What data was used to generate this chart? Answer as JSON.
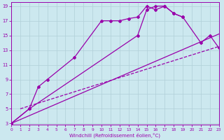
{
  "xlabel": "Windchill (Refroidissement éolien,°C)",
  "background_color": "#cce8ef",
  "grid_color": "#b0cfd8",
  "line_color": "#9900aa",
  "xmin": 0,
  "xmax": 23,
  "ymin": 3,
  "ymax": 19,
  "yticks": [
    3,
    5,
    7,
    9,
    11,
    13,
    15,
    17,
    19
  ],
  "xticks": [
    0,
    1,
    2,
    3,
    4,
    5,
    6,
    7,
    8,
    9,
    10,
    11,
    12,
    13,
    14,
    15,
    16,
    17,
    18,
    19,
    20,
    21,
    22,
    23
  ],
  "series": [
    {
      "x": [
        0,
        1,
        2,
        3,
        4,
        5,
        6,
        7,
        8,
        9,
        10,
        11,
        12,
        13,
        14,
        15,
        16,
        17,
        18,
        19,
        20,
        21,
        22,
        23
      ],
      "y": [
        3,
        null,
        5,
        8,
        9,
        null,
        null,
        12,
        null,
        null,
        17,
        17,
        17,
        17.3,
        17.5,
        19,
        18.5,
        19,
        18,
        17.5,
        null,
        null,
        null,
        null
      ],
      "marker": "D",
      "markersize": 2,
      "linewidth": 0.9,
      "linestyle": "-"
    },
    {
      "x": [
        0,
        2,
        3,
        4,
        7,
        10,
        11,
        12,
        13,
        14,
        15,
        16,
        17,
        18,
        19,
        20,
        21,
        22,
        23
      ],
      "y": [
        3,
        5,
        null,
        null,
        null,
        null,
        null,
        null,
        null,
        15,
        18.5,
        19,
        19,
        18,
        17.5,
        null,
        14,
        15,
        13.3
      ],
      "marker": "D",
      "markersize": 2,
      "linewidth": 0.9,
      "linestyle": "-"
    },
    {
      "x": [
        0,
        23
      ],
      "y": [
        3,
        15.2
      ],
      "marker": null,
      "linewidth": 0.9,
      "linestyle": "-"
    },
    {
      "x": [
        1,
        23
      ],
      "y": [
        5,
        13.5
      ],
      "marker": null,
      "linewidth": 0.9,
      "linestyle": "--"
    }
  ]
}
